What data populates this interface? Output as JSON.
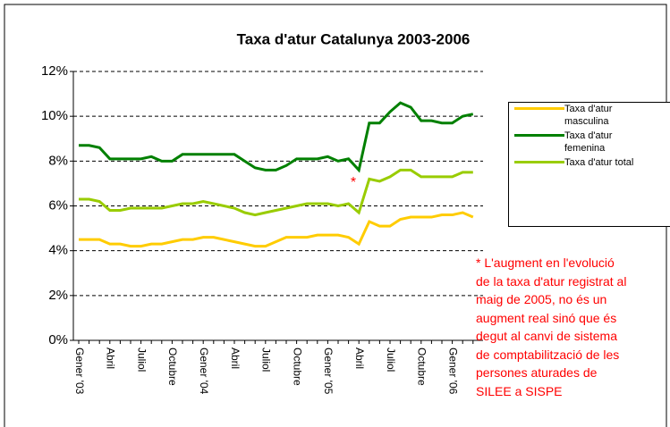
{
  "chart_data": {
    "type": "line",
    "title": "Taxa d'atur Catalunya 2003-2006",
    "categories": [
      "Gener '03",
      null,
      null,
      "Abril",
      null,
      null,
      "Juliol",
      null,
      null,
      "Octubre",
      null,
      null,
      "Gener '04",
      null,
      null,
      "Abril",
      null,
      null,
      "Juliol",
      null,
      null,
      "Octubre",
      null,
      null,
      "Gener '05",
      null,
      null,
      "Abril",
      null,
      null,
      "Juliol",
      null,
      null,
      "Octubre",
      null,
      null,
      "Gener '06",
      null,
      null
    ],
    "series": [
      {
        "name": "Taxa d'atur masculina",
        "color": "#ffcc00",
        "values": [
          4.5,
          4.5,
          4.5,
          4.3,
          4.3,
          4.2,
          4.2,
          4.3,
          4.3,
          4.4,
          4.5,
          4.5,
          4.6,
          4.6,
          4.5,
          4.4,
          4.3,
          4.2,
          4.2,
          4.4,
          4.6,
          4.6,
          4.6,
          4.7,
          4.7,
          4.7,
          4.6,
          4.3,
          5.3,
          5.1,
          5.1,
          5.4,
          5.5,
          5.5,
          5.5,
          5.6,
          5.6,
          5.7,
          5.5
        ]
      },
      {
        "name": "Taxa d'atur femenina",
        "color": "#008000",
        "values": [
          8.7,
          8.7,
          8.6,
          8.1,
          8.1,
          8.1,
          8.1,
          8.2,
          8.0,
          8.0,
          8.3,
          8.3,
          8.3,
          8.3,
          8.3,
          8.3,
          8.0,
          7.7,
          7.6,
          7.6,
          7.8,
          8.1,
          8.1,
          8.1,
          8.2,
          8.0,
          8.1,
          7.6,
          9.7,
          9.7,
          10.2,
          10.6,
          10.4,
          9.8,
          9.8,
          9.7,
          9.7,
          10.0,
          10.1
        ]
      },
      {
        "name": "Taxa d'atur total",
        "color": "#99cc00",
        "values": [
          6.3,
          6.3,
          6.2,
          5.8,
          5.8,
          5.9,
          5.9,
          5.9,
          5.9,
          6.0,
          6.1,
          6.1,
          6.2,
          6.1,
          6.0,
          5.9,
          5.7,
          5.6,
          5.7,
          5.8,
          5.9,
          6.0,
          6.1,
          6.1,
          6.1,
          6.0,
          6.1,
          5.7,
          7.2,
          7.1,
          7.3,
          7.6,
          7.6,
          7.3,
          7.3,
          7.3,
          7.3,
          7.5,
          7.5
        ]
      }
    ],
    "ylim": [
      0,
      12
    ],
    "yticks": [
      {
        "value": 0,
        "label": "0%"
      },
      {
        "value": 2,
        "label": "2%"
      },
      {
        "value": 4,
        "label": "4%"
      },
      {
        "value": 6,
        "label": "6%"
      },
      {
        "value": 8,
        "label": "8%"
      },
      {
        "value": 10,
        "label": "10%"
      },
      {
        "value": 12,
        "label": "12%"
      }
    ],
    "grid": true,
    "legend": "right",
    "annotation": "*",
    "note_lines": [
      "* L'augment  en l'evolució",
      "de la taxa d'atur registrat al",
      "maig de 2005, no és un",
      "augment real sinó que és",
      "degut al canvi de sistema",
      "de comptabilització de les",
      "persones aturades de",
      "SILEE a SISPE"
    ]
  }
}
